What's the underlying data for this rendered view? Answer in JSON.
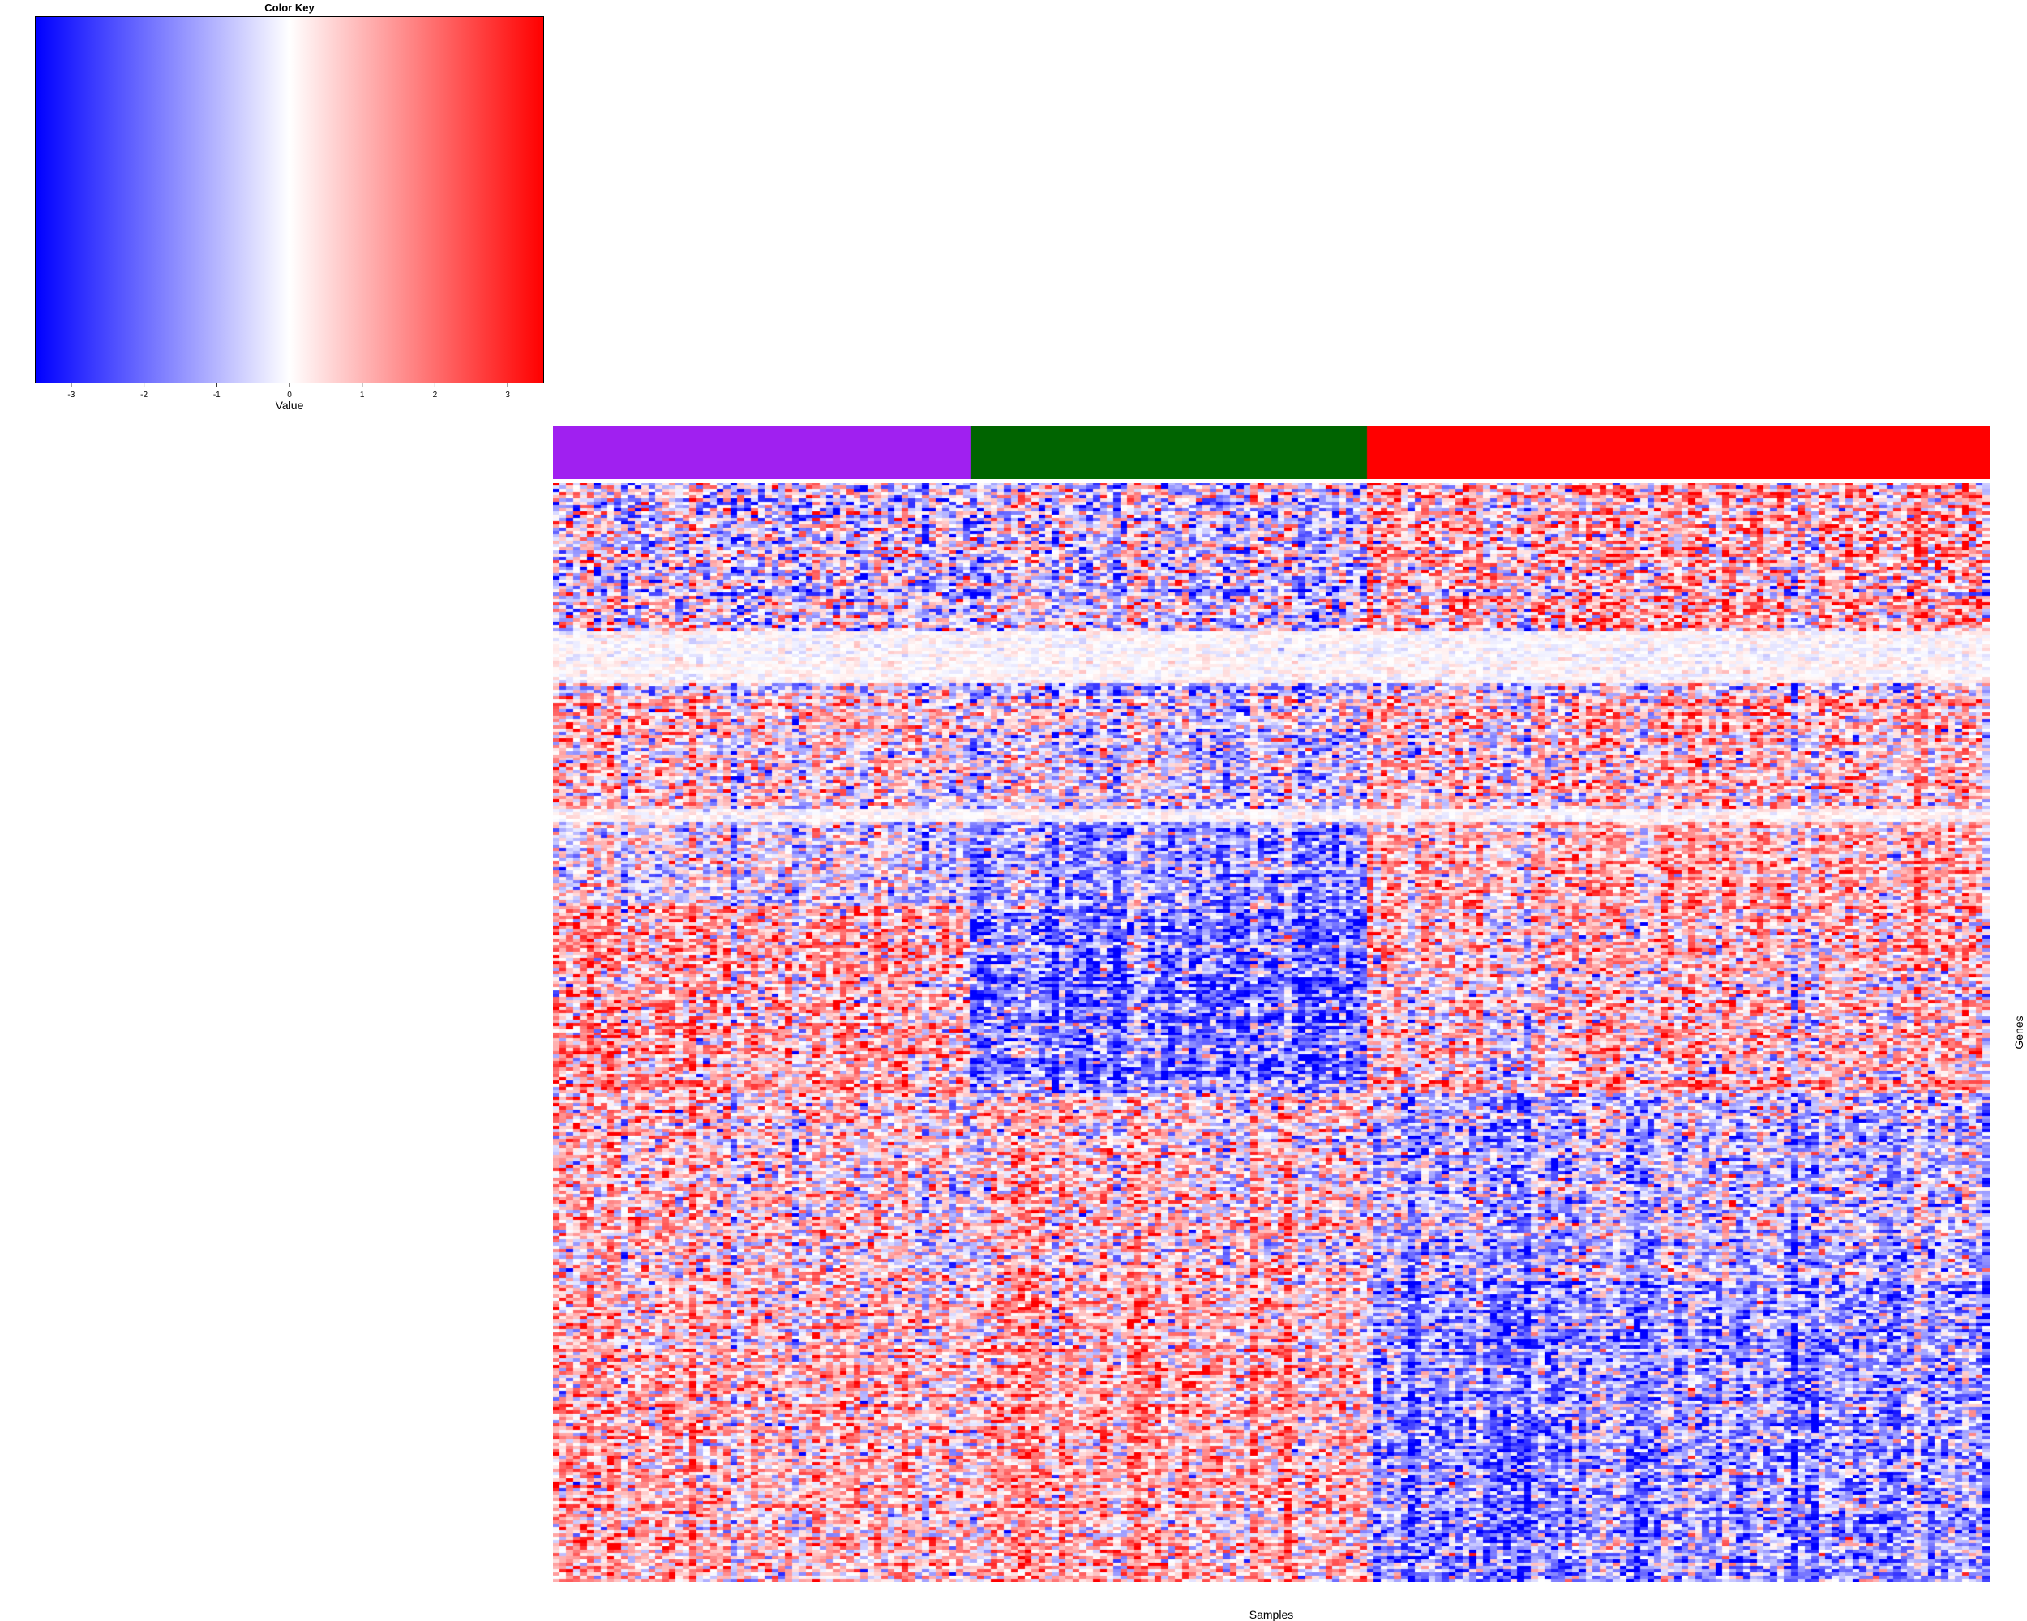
{
  "chart_data": {
    "type": "heatmap",
    "color_key": {
      "title": "Color Key",
      "xlabel": "Value",
      "range": [
        -3.5,
        3.5
      ],
      "ticks": [
        "-3",
        "-2",
        "-1",
        "0",
        "1",
        "2",
        "3"
      ],
      "tick_values": [
        -3,
        -2,
        -1,
        0,
        1,
        2,
        3
      ],
      "colors": {
        "low": "#0000ff",
        "mid": "#ffffff",
        "high": "#ff0000"
      }
    },
    "xlabel": "Samples",
    "ylabel": "Genes",
    "sample_groups": [
      {
        "color": "#a020f0",
        "n_samples": 61
      },
      {
        "color": "#006400",
        "n_samples": 58
      },
      {
        "color": "#ff0000",
        "n_samples": 91
      }
    ],
    "n_genes": 340,
    "gene_blocks": [
      {
        "n_genes": 46,
        "mean_by_group": [
          -0.4,
          -0.5,
          0.8
        ],
        "noise": 1.6
      },
      {
        "n_genes": 16,
        "mean_by_group": [
          0.0,
          0.0,
          0.0
        ],
        "noise": 0.3
      },
      {
        "n_genes": 39,
        "mean_by_group": [
          0.2,
          -0.5,
          0.4
        ],
        "noise": 1.4
      },
      {
        "n_genes": 4,
        "mean_by_group": [
          0.0,
          0.0,
          0.0
        ],
        "noise": 0.3
      },
      {
        "n_genes": 26,
        "mean_by_group": [
          -0.3,
          -1.4,
          0.8
        ],
        "noise": 1.2
      },
      {
        "n_genes": 58,
        "mean_by_group": [
          0.9,
          -1.9,
          0.5
        ],
        "noise": 1.4
      },
      {
        "n_genes": 58,
        "mean_by_group": [
          0.4,
          0.5,
          -0.8
        ],
        "noise": 1.4
      },
      {
        "n_genes": 93,
        "mean_by_group": [
          0.7,
          0.9,
          -1.4
        ],
        "noise": 1.3
      }
    ]
  }
}
